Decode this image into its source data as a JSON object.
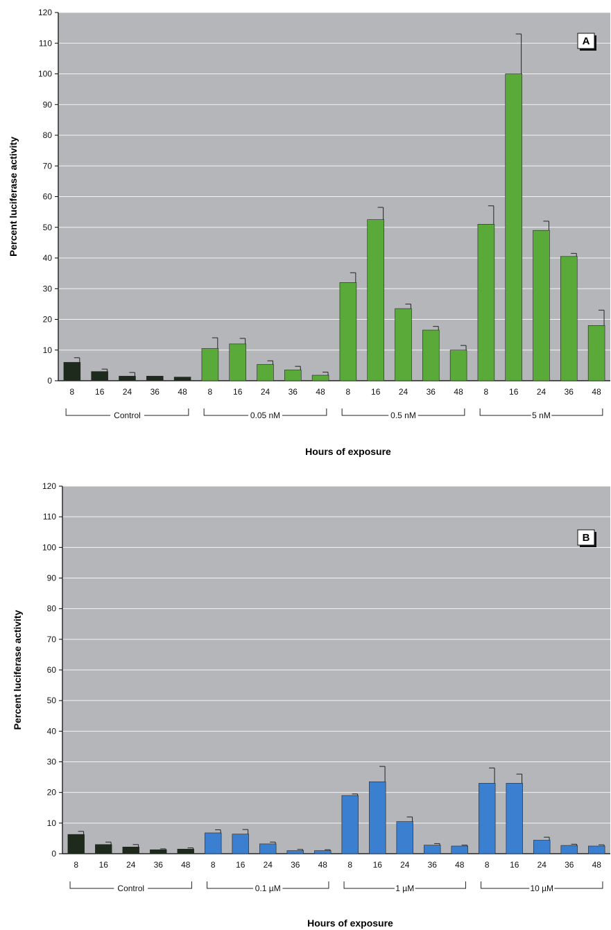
{
  "chart_data": [
    {
      "type": "bar",
      "panel": "A",
      "ylabel": "Percent luciferase activity",
      "xlabel": "Hours of exposure",
      "ylim": [
        0,
        120
      ],
      "yticks": [
        0,
        10,
        20,
        30,
        40,
        50,
        60,
        70,
        80,
        90,
        100,
        110,
        120
      ],
      "grid": true,
      "background": "#b4b6b9",
      "groups": [
        {
          "label": "Control",
          "color": "#1e2a1c",
          "bars": [
            {
              "x": "8",
              "value": 6,
              "error": 1.5
            },
            {
              "x": "16",
              "value": 3,
              "error": 0.8
            },
            {
              "x": "24",
              "value": 1.5,
              "error": 1.2
            },
            {
              "x": "36",
              "value": 1.5,
              "error": 0
            },
            {
              "x": "48",
              "value": 1.2,
              "error": 0
            }
          ]
        },
        {
          "label": "0.05 nM",
          "color": "#5aaa3a",
          "bars": [
            {
              "x": "8",
              "value": 10.5,
              "error": 3.5
            },
            {
              "x": "16",
              "value": 12,
              "error": 1.8
            },
            {
              "x": "24",
              "value": 5.3,
              "error": 1.2
            },
            {
              "x": "36",
              "value": 3.5,
              "error": 1.2
            },
            {
              "x": "48",
              "value": 1.8,
              "error": 1
            }
          ]
        },
        {
          "label": "0.5 nM",
          "color": "#5aaa3a",
          "bars": [
            {
              "x": "8",
              "value": 32,
              "error": 3.2
            },
            {
              "x": "16",
              "value": 52.5,
              "error": 4
            },
            {
              "x": "24",
              "value": 23.5,
              "error": 1.5
            },
            {
              "x": "36",
              "value": 16.5,
              "error": 1.2
            },
            {
              "x": "48",
              "value": 10,
              "error": 1.5
            }
          ]
        },
        {
          "label": "5 nM",
          "color": "#5aaa3a",
          "bars": [
            {
              "x": "8",
              "value": 51,
              "error": 6
            },
            {
              "x": "16",
              "value": 100,
              "error": 13
            },
            {
              "x": "24",
              "value": 49,
              "error": 3
            },
            {
              "x": "36",
              "value": 40.5,
              "error": 1
            },
            {
              "x": "48",
              "value": 18,
              "error": 5
            }
          ]
        }
      ]
    },
    {
      "type": "bar",
      "panel": "B",
      "ylabel": "Percent luciferase activity",
      "xlabel": "Hours of exposure",
      "ylim": [
        0,
        120
      ],
      "yticks": [
        0,
        10,
        20,
        30,
        40,
        50,
        60,
        70,
        80,
        90,
        100,
        110,
        120
      ],
      "grid": true,
      "background": "#b4b6b9",
      "groups": [
        {
          "label": "Control",
          "color": "#1e2a1c",
          "bars": [
            {
              "x": "8",
              "value": 6.3,
              "error": 1
            },
            {
              "x": "16",
              "value": 3,
              "error": 0.8
            },
            {
              "x": "24",
              "value": 2.2,
              "error": 0.8
            },
            {
              "x": "36",
              "value": 1.3,
              "error": 0.3
            },
            {
              "x": "48",
              "value": 1.5,
              "error": 0.4
            }
          ]
        },
        {
          "label": "0.1 µM",
          "color": "#3a7fd0",
          "bars": [
            {
              "x": "8",
              "value": 6.8,
              "error": 1
            },
            {
              "x": "16",
              "value": 6.4,
              "error": 1.5
            },
            {
              "x": "24",
              "value": 3.2,
              "error": 0.6
            },
            {
              "x": "36",
              "value": 1,
              "error": 0.4
            },
            {
              "x": "48",
              "value": 1,
              "error": 0.3
            }
          ]
        },
        {
          "label": "1 µM",
          "color": "#3a7fd0",
          "bars": [
            {
              "x": "8",
              "value": 19,
              "error": 0.5
            },
            {
              "x": "16",
              "value": 23.5,
              "error": 5
            },
            {
              "x": "24",
              "value": 10.5,
              "error": 1.5
            },
            {
              "x": "36",
              "value": 2.8,
              "error": 0.5
            },
            {
              "x": "48",
              "value": 2.5,
              "error": 0.3
            }
          ]
        },
        {
          "label": "10 µM",
          "color": "#3a7fd0",
          "bars": [
            {
              "x": "8",
              "value": 23,
              "error": 5
            },
            {
              "x": "16",
              "value": 23,
              "error": 3
            },
            {
              "x": "24",
              "value": 4.4,
              "error": 1
            },
            {
              "x": "36",
              "value": 2.7,
              "error": 0.4
            },
            {
              "x": "48",
              "value": 2.5,
              "error": 0.4
            }
          ]
        }
      ]
    }
  ]
}
